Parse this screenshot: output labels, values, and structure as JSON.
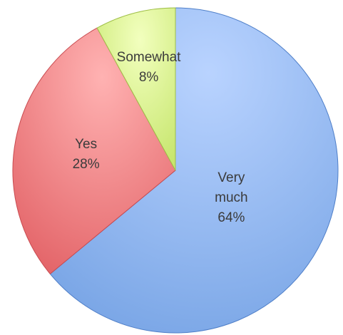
{
  "chart_data": {
    "type": "pie",
    "title": "",
    "slices": [
      {
        "label_lines": [
          "Very",
          "much",
          "64%"
        ],
        "value": 64,
        "color": "#7aa6e6",
        "highlight": "#b9d3ff",
        "stroke": "#4f7fc8",
        "text_color": "#3b3b3b"
      },
      {
        "label_lines": [
          "Yes",
          "28%"
        ],
        "value": 28,
        "color": "#e4666a",
        "highlight": "#ffb2b2",
        "stroke": "#c84b50",
        "text_color": "#3b3b3b"
      },
      {
        "label_lines": [
          "Somewhat",
          "8%"
        ],
        "value": 8,
        "color": "#c7e66e",
        "highlight": "#f2ffbe",
        "stroke": "#9fbf47",
        "text_color": "#3b3b3b"
      }
    ],
    "start_angle_deg": 0,
    "direction": "clockwise",
    "legend": "none",
    "label_position": "inside"
  }
}
